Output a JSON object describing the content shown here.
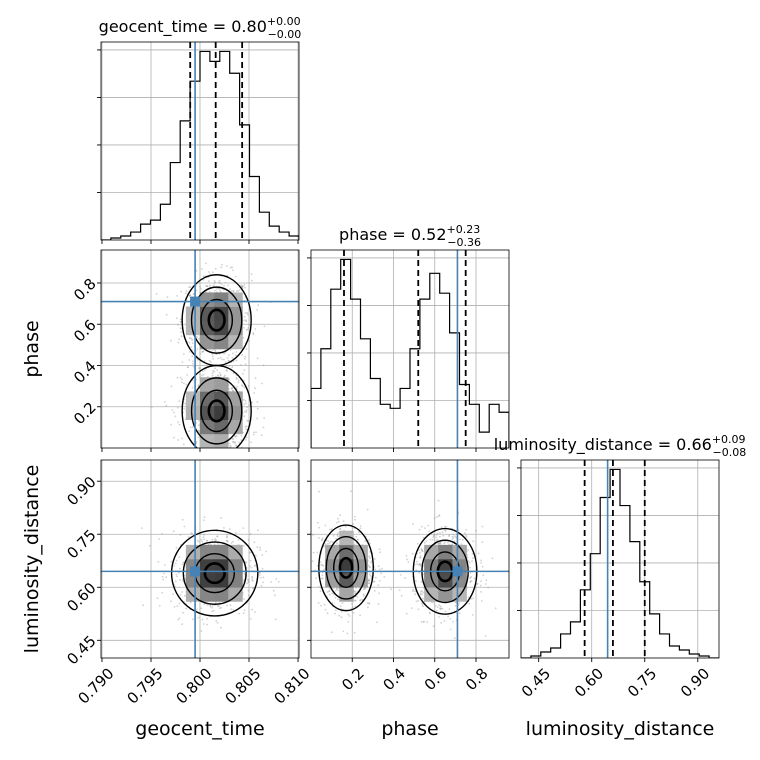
{
  "chart_data": {
    "type": "corner",
    "truth_color": "#4682b4",
    "parameters": [
      "geocent_time",
      "phase",
      "luminosity_distance"
    ],
    "truths": {
      "geocent_time": 0.7995,
      "phase": 0.71,
      "luminosity_distance": 0.645
    },
    "axes": {
      "geocent_time": {
        "range": [
          0.7899,
          0.8101
        ],
        "ticks": [
          0.79,
          0.795,
          0.8,
          0.805,
          0.81
        ],
        "tick_labels": [
          "0.790",
          "0.795",
          "0.800",
          "0.805",
          "0.810"
        ]
      },
      "phase": {
        "range": [
          0.0,
          0.96
        ],
        "ticks": [
          0.2,
          0.4,
          0.6,
          0.8
        ],
        "tick_labels": [
          "0.2",
          "0.4",
          "0.6",
          "0.8"
        ]
      },
      "luminosity_distance": {
        "range": [
          0.4,
          0.96
        ],
        "ticks": [
          0.45,
          0.6,
          0.75,
          0.9
        ],
        "tick_labels": [
          "0.45",
          "0.60",
          "0.75",
          "0.90"
        ]
      }
    },
    "diagonal": [
      {
        "param": "geocent_time",
        "title": {
          "main": "geocent_time = 0.80",
          "sup": "+0.00",
          "sub": "−0.00"
        },
        "median": 0.8016,
        "lower": 0.799,
        "upper": 0.8043,
        "hist_edges_start": 0.7899,
        "hist_bin_width": 0.00101,
        "hist_counts": [
          0,
          1,
          2,
          4,
          8,
          10,
          18,
          39,
          60,
          80,
          95,
          90,
          95,
          84,
          58,
          32,
          14,
          7,
          4,
          2
        ]
      },
      {
        "param": "phase",
        "title": {
          "main": "phase = 0.52",
          "sup": "+0.23",
          "sub": "−0.36"
        },
        "median": 0.52,
        "lower": 0.16,
        "upper": 0.75,
        "hist_edges_start": 0.0,
        "hist_bin_width": 0.048,
        "hist_counts": [
          30,
          50,
          80,
          95,
          75,
          55,
          35,
          22,
          20,
          30,
          50,
          75,
          88,
          78,
          58,
          32,
          22,
          8,
          22,
          18
        ]
      },
      {
        "param": "luminosity_distance",
        "title": {
          "main": "luminosity_distance = 0.66",
          "sup": "+0.09",
          "sub": "−0.08"
        },
        "median": 0.66,
        "lower": 0.58,
        "upper": 0.75,
        "hist_edges_start": 0.4,
        "hist_bin_width": 0.028,
        "hist_counts": [
          0,
          1,
          3,
          5,
          12,
          18,
          34,
          52,
          80,
          94,
          76,
          58,
          38,
          22,
          12,
          6,
          4,
          2,
          1,
          0
        ]
      }
    ],
    "pairs": [
      {
        "x": "geocent_time",
        "y": "phase",
        "modes": [
          {
            "cx": 0.8017,
            "cy": 0.62,
            "sx": 0.0016,
            "sy": 0.1
          },
          {
            "cx": 0.8017,
            "cy": 0.18,
            "sx": 0.0016,
            "sy": 0.1
          }
        ]
      },
      {
        "x": "geocent_time",
        "y": "luminosity_distance",
        "modes": [
          {
            "cx": 0.8015,
            "cy": 0.64,
            "sx": 0.002,
            "sy": 0.055
          }
        ]
      },
      {
        "x": "phase",
        "y": "luminosity_distance",
        "modes": [
          {
            "cx": 0.17,
            "cy": 0.655,
            "sx": 0.06,
            "sy": 0.055
          },
          {
            "cx": 0.65,
            "cy": 0.645,
            "sx": 0.07,
            "sy": 0.055
          }
        ]
      }
    ],
    "grid": true
  }
}
